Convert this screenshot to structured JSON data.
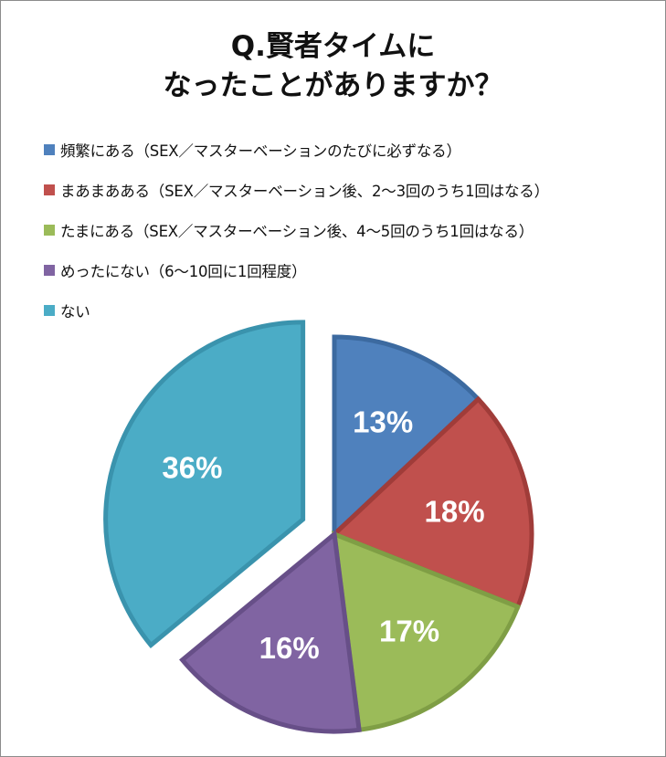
{
  "chart_data": {
    "type": "pie",
    "title_lines": [
      "Q.賢者タイムに",
      "なったことがありますか？"
    ],
    "categories": [
      "頻繁にある（SEX／マスターベーションのたびに必ずなる）",
      "まあまあある（SEX／マスターベーション後、2〜3回のうち1回はなる）",
      "たまにある（SEX／マスターベーション後、4〜5回のうち1回はなる）",
      "めったにない（6〜10回に1回程度）",
      "ない"
    ],
    "values": [
      13,
      18,
      17,
      16,
      36
    ],
    "data_labels": [
      "13%",
      "18%",
      "17%",
      "16%",
      "36%"
    ],
    "colors": [
      "#4f81bd",
      "#c0504d",
      "#9bbb59",
      "#8064a2",
      "#4bacc6"
    ],
    "border_colors": [
      "#3c6aa0",
      "#a03c39",
      "#7f9e45",
      "#674f88",
      "#3a93ad"
    ],
    "legend_position": "top",
    "exploded_slice": "ない"
  }
}
